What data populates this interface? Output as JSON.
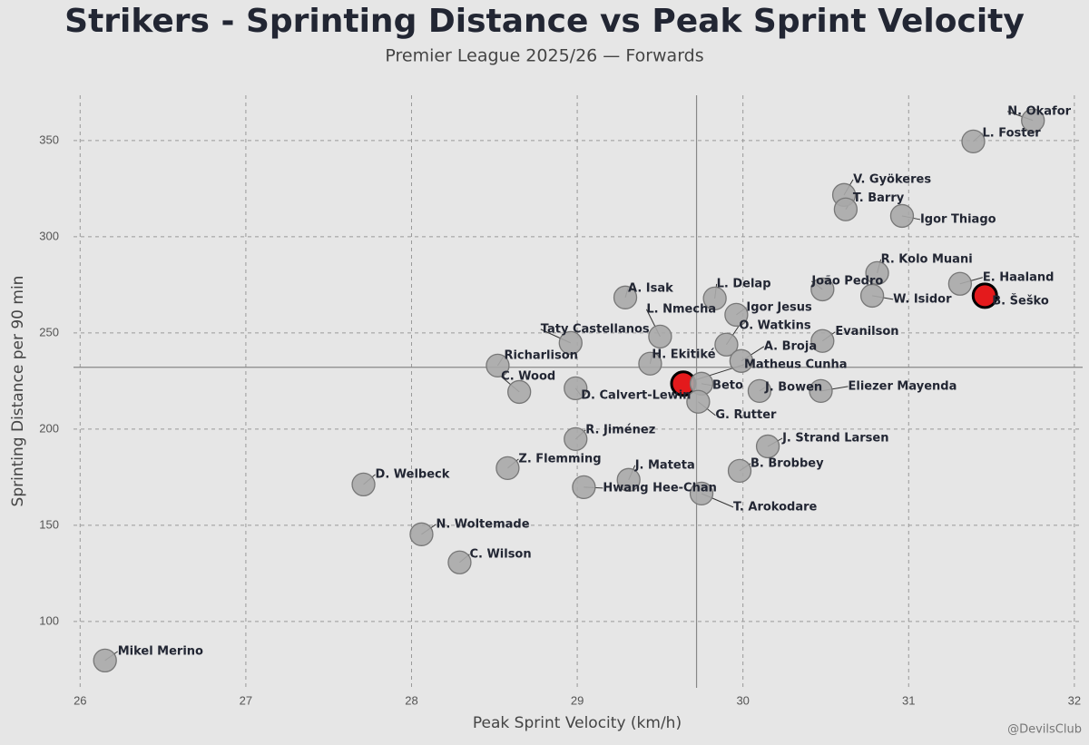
{
  "chart_data": {
    "type": "scatter",
    "title": "Strikers - Sprinting Distance vs Peak Sprint Velocity",
    "subtitle": "Premier League 2025/26 — Forwards",
    "x_label": "Peak Sprint Velocity (km/h)",
    "y_label": "Sprinting Distance per 90 min",
    "watermark": "@DevilsClub",
    "xlim": [
      25.96,
      32.05
    ],
    "ylim": [
      65.5,
      373.5
    ],
    "xticks": [
      26,
      27,
      28,
      29,
      30,
      31,
      32
    ],
    "yticks": [
      100,
      150,
      200,
      250,
      300,
      350
    ],
    "grid": true,
    "x_mean": 29.72,
    "y_mean": 232.1,
    "labels": [
      "N. Okafor",
      "L. Foster",
      "V. Gyökeres",
      "T. Barry",
      "Igor Thiago",
      "R. Kolo Muani",
      "João Pedro",
      "W. Isidor",
      "E. Haaland",
      "B. Šeško",
      "L. Delap",
      "A. Isak",
      "Igor Jesus",
      "L. Nmecha",
      "O. Watkins",
      "Evanilson",
      "Taty Castellanos",
      "A. Broja",
      "H. Ekitiké",
      "Richarlison",
      "Matheus Cunha",
      "Beto",
      "G. Rutter",
      "D. Calvert-Lewin",
      "C. Wood",
      "J. Bowen",
      "Eliezer Mayenda",
      "R. Jiménez",
      "J. Strand Larsen",
      "Z. Flemming",
      "B. Brobbey",
      "J. Mateta",
      "Hwang Hee-Chan",
      "D. Welbeck",
      "T. Arokodare",
      "N. Woltemade",
      "C. Wilson",
      "Mikel Merino"
    ],
    "x": [
      31.75,
      31.39,
      30.61,
      30.62,
      30.96,
      30.81,
      30.48,
      30.78,
      31.31,
      31.46,
      29.83,
      29.29,
      29.96,
      29.5,
      29.9,
      30.48,
      28.96,
      29.99,
      29.44,
      28.52,
      29.64,
      29.75,
      29.73,
      28.99,
      28.65,
      30.1,
      30.47,
      28.99,
      30.15,
      28.58,
      29.98,
      29.31,
      29.04,
      27.71,
      29.75,
      28.06,
      28.29,
      26.15
    ],
    "y": [
      360.4,
      349.5,
      321.7,
      314.2,
      310.8,
      281.1,
      272.6,
      269.3,
      275.5,
      269.3,
      267.9,
      268.4,
      259.4,
      248.1,
      243.9,
      245.8,
      244.8,
      235.4,
      234.0,
      233.0,
      223.6,
      223.6,
      214.2,
      221.2,
      219.3,
      219.8,
      219.8,
      194.8,
      191.0,
      179.7,
      178.3,
      173.6,
      169.8,
      171.2,
      166.5,
      145.3,
      130.7,
      79.7
    ],
    "colors": [
      "#a9a9a9",
      "#a9a9a9",
      "#a9a9a9",
      "#a9a9a9",
      "#a9a9a9",
      "#a9a9a9",
      "#a9a9a9",
      "#a9a9a9",
      "#a9a9a9",
      "#e41a1c",
      "#a9a9a9",
      "#a9a9a9",
      "#a9a9a9",
      "#a9a9a9",
      "#a9a9a9",
      "#a9a9a9",
      "#a9a9a9",
      "#a9a9a9",
      "#a9a9a9",
      "#a9a9a9",
      "#e41a1c",
      "#a9a9a9",
      "#a9a9a9",
      "#a9a9a9",
      "#a9a9a9",
      "#a9a9a9",
      "#a9a9a9",
      "#a9a9a9",
      "#a9a9a9",
      "#a9a9a9",
      "#a9a9a9",
      "#a9a9a9",
      "#a9a9a9",
      "#a9a9a9",
      "#a9a9a9",
      "#a9a9a9",
      "#a9a9a9",
      "#a9a9a9"
    ]
  }
}
